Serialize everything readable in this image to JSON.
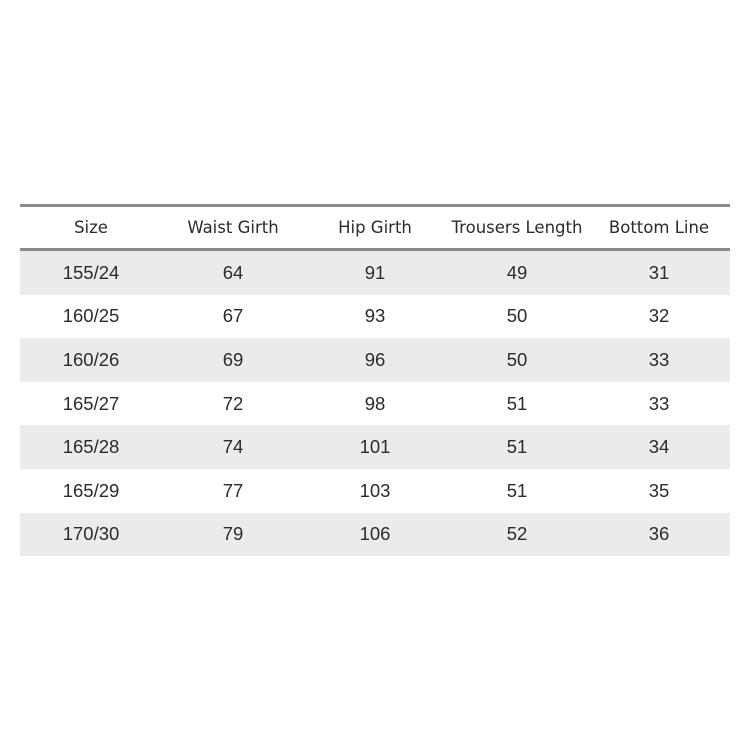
{
  "table": {
    "headers": [
      "Size",
      "Waist Girth",
      "Hip Girth",
      "Trousers Length",
      "Bottom Line"
    ],
    "rows": [
      [
        "155/24",
        "64",
        "91",
        "49",
        "31"
      ],
      [
        "160/25",
        "67",
        "93",
        "50",
        "32"
      ],
      [
        "160/26",
        "69",
        "96",
        "50",
        "33"
      ],
      [
        "165/27",
        "72",
        "98",
        "51",
        "33"
      ],
      [
        "165/28",
        "74",
        "101",
        "51",
        "34"
      ],
      [
        "165/29",
        "77",
        "103",
        "51",
        "35"
      ],
      [
        "170/30",
        "79",
        "106",
        "52",
        "36"
      ]
    ]
  },
  "colors": {
    "stripe": "#ebebeb",
    "rule": "#8a8a8a",
    "text": "#2b2b2b"
  }
}
